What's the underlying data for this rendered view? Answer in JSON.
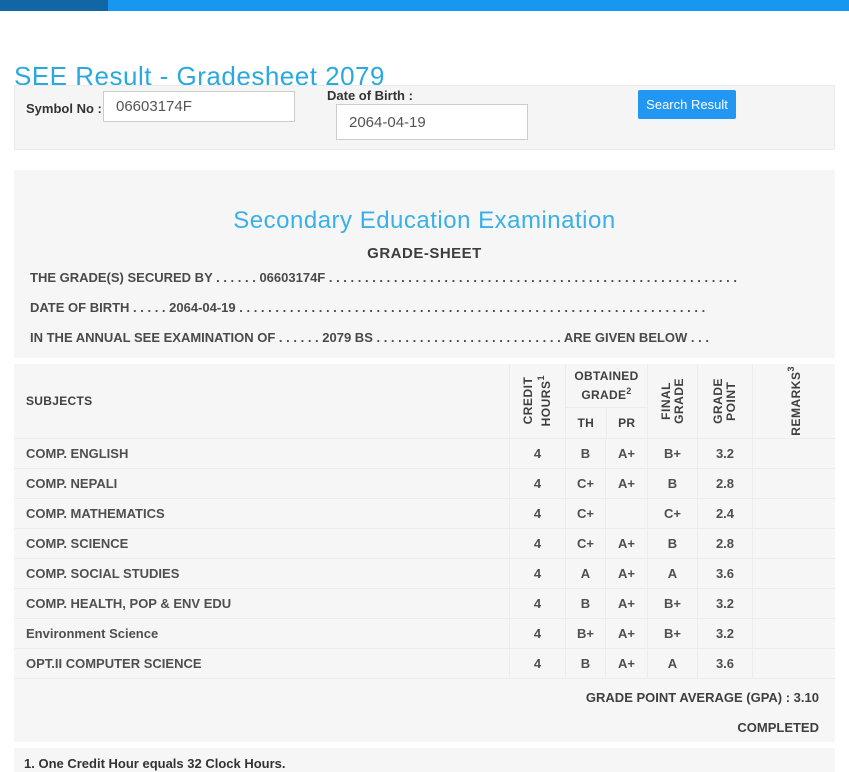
{
  "topbar": {
    "accent_dark": "#1266a5",
    "accent_light": "#1797ef"
  },
  "page": {
    "title": "SEE Result - Gradesheet 2079",
    "title_color": "#2aa9e1"
  },
  "search_form": {
    "symbol_label": "Symbol No :",
    "symbol_value": "06603174F",
    "dob_label": "Date of Birth :",
    "dob_value": "2064-04-19",
    "button_label": "Search Result",
    "button_color": "#2196f3"
  },
  "gradesheet": {
    "title": "Secondary Education Examination",
    "subtitle": "GRADE-SHEET",
    "intro_lines": [
      "THE GRADE(S) SECURED BY . . . . . . 06603174F . . . . . . . . . . . . . . . . . . . . . . . . . . . . . . . . . . . . . . . . . . . . . . . . . . . . . . . . .",
      "DATE OF BIRTH . . . . . 2064-04-19 . . . . . . . . . . . . . . . . . . . . . . . . . . . . . . . . . . . . . . . . . . . . . . . . . . . . . . . . . . . . . . . . .",
      "IN THE ANNUAL SEE EXAMINATION OF . . . . . . 2079 BS . . . . . . . . . . . . . . . . . . . . . . . . . . ARE GIVEN BELOW . . ."
    ],
    "table": {
      "headers": {
        "subjects": "SUBJECTS",
        "credit_line1": "CREDIT",
        "credit_line2": "HOURS",
        "credit_sup": "1",
        "obtained_line1": "OBTAINED",
        "obtained_line2": "GRADE",
        "obtained_sup": "2",
        "th": "TH",
        "pr": "PR",
        "final_line1": "FINAL",
        "final_line2": "GRADE",
        "gp_line1": "GRADE",
        "gp_line2": "POINT",
        "remarks": "REMARKS",
        "remarks_sup": "3"
      },
      "rows": [
        {
          "subject": "COMP. ENGLISH",
          "credit": "4",
          "th": "B",
          "pr": "A+",
          "final": "B+",
          "point": "3.2",
          "remarks": ""
        },
        {
          "subject": "COMP. NEPALI",
          "credit": "4",
          "th": "C+",
          "pr": "A+",
          "final": "B",
          "point": "2.8",
          "remarks": ""
        },
        {
          "subject": "COMP. MATHEMATICS",
          "credit": "4",
          "th": "C+",
          "pr": "",
          "final": "C+",
          "point": "2.4",
          "remarks": ""
        },
        {
          "subject": "COMP. SCIENCE",
          "credit": "4",
          "th": "C+",
          "pr": "A+",
          "final": "B",
          "point": "2.8",
          "remarks": ""
        },
        {
          "subject": "COMP. SOCIAL STUDIES",
          "credit": "4",
          "th": "A",
          "pr": "A+",
          "final": "A",
          "point": "3.6",
          "remarks": ""
        },
        {
          "subject": "COMP. HEALTH, POP & ENV EDU",
          "credit": "4",
          "th": "B",
          "pr": "A+",
          "final": "B+",
          "point": "3.2",
          "remarks": ""
        },
        {
          "subject": "Environment Science",
          "credit": "4",
          "th": "B+",
          "pr": "A+",
          "final": "B+",
          "point": "3.2",
          "remarks": ""
        },
        {
          "subject": "OPT.II COMPUTER SCIENCE",
          "credit": "4",
          "th": "B",
          "pr": "A+",
          "final": "A",
          "point": "3.6",
          "remarks": ""
        }
      ]
    },
    "gpa_line": "GRADE POINT AVERAGE (GPA) : 3.10",
    "status": "COMPLETED",
    "footnote": "1. One Credit Hour equals 32 Clock Hours."
  }
}
